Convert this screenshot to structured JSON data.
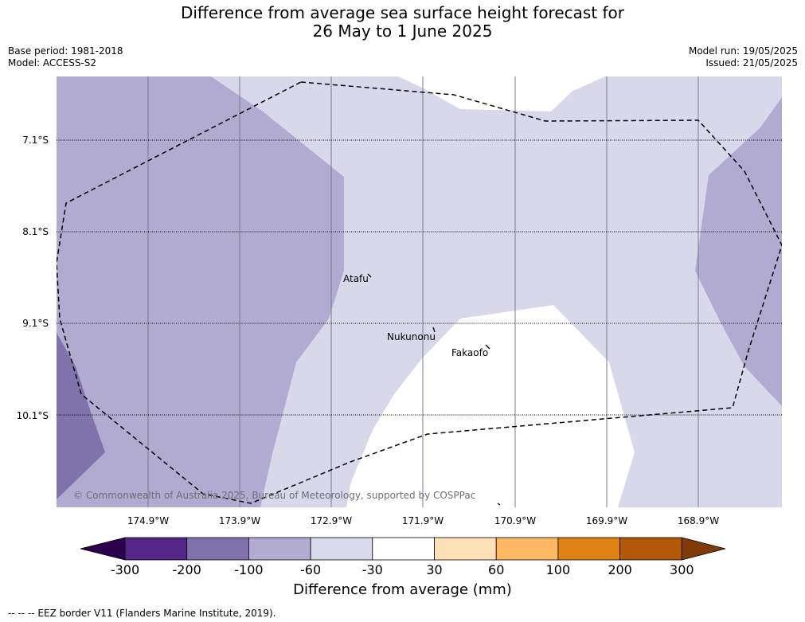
{
  "title": {
    "line1": "Difference from average sea surface height forecast for",
    "line2": "26 May to 1 June 2025"
  },
  "meta_left": {
    "base_period": "Base period: 1981-2018",
    "model": "Model: ACCESS-S2"
  },
  "meta_right": {
    "model_run": "Model run: 19/05/2025",
    "issued": "Issued: 21/05/2025"
  },
  "map": {
    "lat_labels": [
      "7.1°S",
      "8.1°S",
      "9.1°S",
      "10.1°S"
    ],
    "lon_labels": [
      "174.9°W",
      "173.9°W",
      "172.9°W",
      "171.9°W",
      "170.9°W",
      "169.9°W",
      "168.9°W"
    ],
    "places": [
      "Atafu",
      "Nukunonu",
      "Fakaofo"
    ],
    "copyright": "© Commonwealth of Australia 2025, Bureau of Meteorology, supported by COSPPac",
    "colors": {
      "n200_n100": "#8072ab",
      "n100_n60": "#b1abd2",
      "n60_n30": "#d8d8ea",
      "n30_30": "#ffffff"
    }
  },
  "colorbar": {
    "ticks": [
      "-300",
      "-200",
      "-100",
      "-60",
      "-30",
      "30",
      "60",
      "100",
      "200",
      "300"
    ],
    "colors": [
      "#2d004b",
      "#542687",
      "#8073ac",
      "#b2abd2",
      "#d8daeb",
      "#ffffff",
      "#fee0b6",
      "#fdb863",
      "#e08214",
      "#b35806",
      "#7f3b08"
    ],
    "label": "Difference from average (mm)"
  },
  "footnote": "--  --  -- EEZ border V11 (Flanders Marine Institute, 2019)."
}
